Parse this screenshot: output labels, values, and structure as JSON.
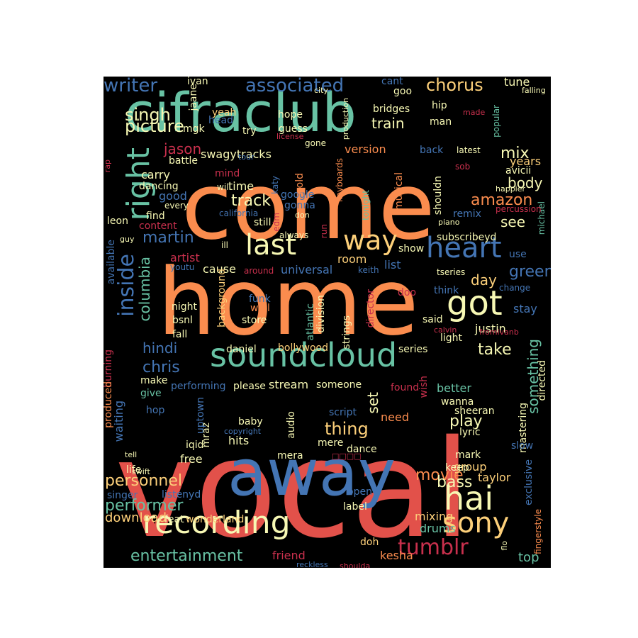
{
  "palette": {
    "background": "#000000",
    "red": "#e2514a",
    "orange": "#fa8c4e",
    "sand": "#fdd07a",
    "cream": "#f7f8b4",
    "teal": "#68c2a4",
    "blue": "#4475b4",
    "crimson": "#c9304d",
    "light_teal": "#9ad4a4"
  },
  "words": [
    {
      "text": "vocal",
      "color": "red"
    },
    {
      "text": "come",
      "color": "orange"
    },
    {
      "text": "home",
      "color": "orange"
    },
    {
      "text": "cifraclub",
      "color": "teal"
    },
    {
      "text": "away",
      "color": "blue"
    },
    {
      "text": "soundcloud",
      "color": "teal"
    },
    {
      "text": "recording",
      "color": "cream"
    },
    {
      "text": "heart",
      "color": "blue"
    },
    {
      "text": "last",
      "color": "cream"
    },
    {
      "text": "right",
      "color": "teal"
    },
    {
      "text": "got",
      "color": "cream"
    },
    {
      "text": "way",
      "color": "sand"
    },
    {
      "text": "hai",
      "color": "cream"
    },
    {
      "text": "sony",
      "color": "sand"
    },
    {
      "text": "tumblr",
      "color": "crimson"
    },
    {
      "text": "inside",
      "color": "blue"
    },
    {
      "text": "associated",
      "color": "blue"
    },
    {
      "text": "writer",
      "color": "blue"
    },
    {
      "text": "chorus",
      "color": "sand"
    },
    {
      "text": "singh",
      "color": "cream"
    },
    {
      "text": "picture",
      "color": "cream"
    },
    {
      "text": "jason",
      "color": "crimson"
    },
    {
      "text": "swagytracks",
      "color": "cream"
    },
    {
      "text": "track",
      "color": "cream"
    },
    {
      "text": "amazon",
      "color": "orange"
    },
    {
      "text": "mix",
      "color": "cream"
    },
    {
      "text": "martin",
      "color": "blue"
    },
    {
      "text": "columbia",
      "color": "teal"
    },
    {
      "text": "hindi",
      "color": "blue"
    },
    {
      "text": "chris",
      "color": "blue"
    },
    {
      "text": "take",
      "color": "cream"
    },
    {
      "text": "green",
      "color": "blue"
    },
    {
      "text": "day",
      "color": "sand"
    },
    {
      "text": "personnel",
      "color": "sand"
    },
    {
      "text": "performer",
      "color": "teal"
    },
    {
      "text": "entertainment",
      "color": "teal"
    },
    {
      "text": "movie",
      "color": "orange"
    },
    {
      "text": "bass",
      "color": "cream"
    },
    {
      "text": "play",
      "color": "cream"
    },
    {
      "text": "thing",
      "color": "sand"
    },
    {
      "text": "something",
      "color": "teal"
    },
    {
      "text": "set",
      "color": "cream"
    },
    {
      "text": "see",
      "color": "cream"
    },
    {
      "text": "train",
      "color": "cream"
    },
    {
      "text": "version",
      "color": "orange"
    },
    {
      "text": "body",
      "color": "cream"
    },
    {
      "text": "years",
      "color": "sand"
    },
    {
      "text": "carry",
      "color": "cream"
    },
    {
      "text": "good",
      "color": "blue"
    },
    {
      "text": "time",
      "color": "cream"
    },
    {
      "text": "stream",
      "color": "cream"
    },
    {
      "text": "justin",
      "color": "cream"
    },
    {
      "text": "download",
      "color": "sand"
    },
    {
      "text": "mixing",
      "color": "sand"
    },
    {
      "text": "drums",
      "color": "teal"
    },
    {
      "text": "friend",
      "color": "crimson"
    },
    {
      "text": "kesha",
      "color": "orange"
    },
    {
      "text": "top",
      "color": "teal"
    },
    {
      "text": "taylor",
      "color": "sand"
    },
    {
      "text": "group",
      "color": "sand"
    },
    {
      "text": "need",
      "color": "orange"
    },
    {
      "text": "hits",
      "color": "cream"
    },
    {
      "text": "iqid",
      "color": "cream"
    },
    {
      "text": "mraz",
      "color": "cream"
    },
    {
      "text": "free",
      "color": "cream"
    },
    {
      "text": "life",
      "color": "cream"
    },
    {
      "text": "better",
      "color": "teal"
    },
    {
      "text": "wanna",
      "color": "cream"
    },
    {
      "text": "audio",
      "color": "cream"
    },
    {
      "text": "doh",
      "color": "sand"
    },
    {
      "text": "cause",
      "color": "cream"
    },
    {
      "text": "universal",
      "color": "blue"
    },
    {
      "text": "artist",
      "color": "crimson"
    },
    {
      "text": "room",
      "color": "sand"
    },
    {
      "text": "list",
      "color": "blue"
    },
    {
      "text": "show",
      "color": "cream"
    },
    {
      "text": "stay",
      "color": "blue"
    },
    {
      "text": "think",
      "color": "blue"
    },
    {
      "text": "find",
      "color": "cream"
    },
    {
      "text": "leon",
      "color": "cream"
    },
    {
      "text": "make",
      "color": "cream"
    },
    {
      "text": "give",
      "color": "teal"
    },
    {
      "text": "night",
      "color": "cream"
    },
    {
      "text": "bsnl",
      "color": "cream"
    },
    {
      "text": "fall",
      "color": "cream"
    },
    {
      "text": "background",
      "color": "sand"
    },
    {
      "text": "bollywood",
      "color": "sand"
    },
    {
      "text": "series",
      "color": "cream"
    },
    {
      "text": "light",
      "color": "cream"
    },
    {
      "text": "said",
      "color": "cream"
    },
    {
      "text": "store",
      "color": "cream"
    },
    {
      "text": "well",
      "color": "orange"
    },
    {
      "text": "funk",
      "color": "blue"
    },
    {
      "text": "daniel",
      "color": "cream"
    },
    {
      "text": "strings",
      "color": "cream"
    },
    {
      "text": "division",
      "color": "cream"
    },
    {
      "text": "atlantic",
      "color": "teal"
    },
    {
      "text": "director",
      "color": "crimson"
    },
    {
      "text": "doo",
      "color": "crimson"
    },
    {
      "text": "keith",
      "color": "blue"
    },
    {
      "text": "around",
      "color": "crimson"
    },
    {
      "text": "ill",
      "color": "cream"
    },
    {
      "text": "youtu",
      "color": "blue"
    },
    {
      "text": "subscribeyd",
      "color": "cream"
    },
    {
      "text": "michael",
      "color": "teal"
    },
    {
      "text": "use",
      "color": "blue"
    },
    {
      "text": "change",
      "color": "blue"
    },
    {
      "text": "tseries",
      "color": "cream"
    },
    {
      "text": "remix",
      "color": "blue"
    },
    {
      "text": "shouldn",
      "color": "cream"
    },
    {
      "text": "musical",
      "color": "orange"
    },
    {
      "text": "tonight",
      "color": "teal"
    },
    {
      "text": "keyboards",
      "color": "orange"
    },
    {
      "text": "google",
      "color": "blue"
    },
    {
      "text": "gonna",
      "color": "blue"
    },
    {
      "text": "gold",
      "color": "orange"
    },
    {
      "text": "mind",
      "color": "crimson"
    },
    {
      "text": "will",
      "color": "cream"
    },
    {
      "text": "katy",
      "color": "blue"
    },
    {
      "text": "dancing",
      "color": "cream"
    },
    {
      "text": "battle",
      "color": "cream"
    },
    {
      "text": "every",
      "color": "cream"
    },
    {
      "text": "content",
      "color": "crimson"
    },
    {
      "text": "still",
      "color": "cream"
    },
    {
      "text": "run",
      "color": "crimson"
    },
    {
      "text": "always",
      "color": "cream"
    },
    {
      "text": "piano",
      "color": "cream"
    },
    {
      "text": "don",
      "color": "cream"
    },
    {
      "text": "california",
      "color": "blue"
    },
    {
      "text": "edm",
      "color": "crimson"
    },
    {
      "text": "percussion",
      "color": "crimson"
    },
    {
      "text": "happier",
      "color": "cream"
    },
    {
      "text": "avicii",
      "color": "cream"
    },
    {
      "text": "sob",
      "color": "crimson"
    },
    {
      "text": "latest",
      "color": "cream"
    },
    {
      "text": "back",
      "color": "blue"
    },
    {
      "text": "gone",
      "color": "cream"
    },
    {
      "text": "bridges",
      "color": "cream"
    },
    {
      "text": "popular",
      "color": "teal"
    },
    {
      "text": "tune",
      "color": "cream"
    },
    {
      "text": "falling",
      "color": "cream"
    },
    {
      "text": "made",
      "color": "crimson"
    },
    {
      "text": "hip",
      "color": "cream"
    },
    {
      "text": "man",
      "color": "cream"
    },
    {
      "text": "production",
      "color": "cream"
    },
    {
      "text": "city",
      "color": "cream"
    },
    {
      "text": "hope",
      "color": "cream"
    },
    {
      "text": "guess",
      "color": "cream"
    },
    {
      "text": "goo",
      "color": "cream"
    },
    {
      "text": "cant",
      "color": "blue"
    },
    {
      "text": "ivan",
      "color": "cream"
    },
    {
      "text": "jaane",
      "color": "cream"
    },
    {
      "text": "mgk",
      "color": "cream"
    },
    {
      "text": "yeah",
      "color": "sand"
    },
    {
      "text": "head",
      "color": "blue"
    },
    {
      "text": "try",
      "color": "cream"
    },
    {
      "text": "license",
      "color": "crimson"
    },
    {
      "text": "tour",
      "color": "blue"
    },
    {
      "text": "rap",
      "color": "crimson"
    },
    {
      "text": "guy",
      "color": "cream"
    },
    {
      "text": "available",
      "color": "blue"
    },
    {
      "text": "burning",
      "color": "crimson"
    },
    {
      "text": "produced",
      "color": "orange"
    },
    {
      "text": "waiting",
      "color": "blue"
    },
    {
      "text": "performing",
      "color": "blue"
    },
    {
      "text": "please",
      "color": "cream"
    },
    {
      "text": "someone",
      "color": "cream"
    },
    {
      "text": "hop",
      "color": "blue"
    },
    {
      "text": "uptown",
      "color": "blue"
    },
    {
      "text": "baby",
      "color": "cream"
    },
    {
      "text": "script",
      "color": "blue"
    },
    {
      "text": "copyright",
      "color": "blue"
    },
    {
      "text": "tell",
      "color": "cream"
    },
    {
      "text": "swift",
      "color": "cream"
    },
    {
      "text": "mera",
      "color": "cream"
    },
    {
      "text": "mere",
      "color": "cream"
    },
    {
      "text": "dance",
      "color": "cream"
    },
    {
      "text": "found",
      "color": "crimson"
    },
    {
      "text": "wish",
      "color": "crimson"
    },
    {
      "text": "calvin",
      "color": "crimson"
    },
    {
      "text": "fromivanb",
      "color": "crimson"
    },
    {
      "text": "directed",
      "color": "cream"
    },
    {
      "text": "sheeran",
      "color": "cream"
    },
    {
      "text": "lyric",
      "color": "cream"
    },
    {
      "text": "mark",
      "color": "cream"
    },
    {
      "text": "mastering",
      "color": "cream"
    },
    {
      "text": "slow",
      "color": "blue"
    },
    {
      "text": "exclusive",
      "color": "blue"
    },
    {
      "text": "keep",
      "color": "cream"
    },
    {
      "text": "singer",
      "color": "blue"
    },
    {
      "text": "listenyd",
      "color": "blue"
    },
    {
      "text": "feat",
      "color": "cream"
    },
    {
      "text": "wonderland",
      "color": "sand"
    },
    {
      "text": "open",
      "color": "blue"
    },
    {
      "text": "label",
      "color": "cream"
    },
    {
      "text": "reckless",
      "color": "blue"
    },
    {
      "text": "shoulda",
      "color": "crimson"
    },
    {
      "text": "fingerstyle",
      "color": "orange"
    },
    {
      "text": "flo",
      "color": "cream"
    },
    {
      "text": "□□□□",
      "color": "crimson"
    }
  ]
}
